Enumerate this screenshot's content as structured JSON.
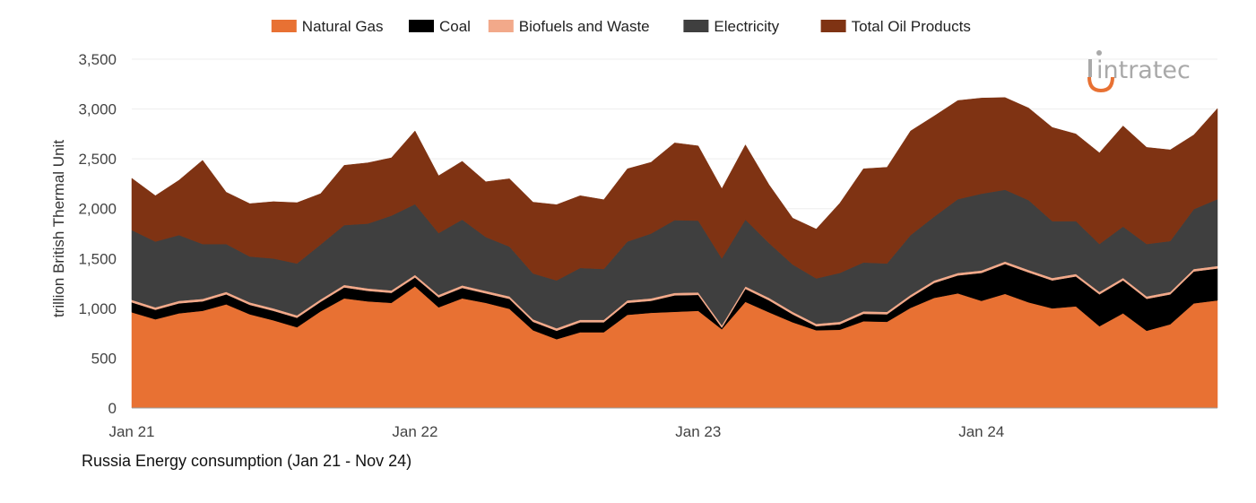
{
  "chart_data": {
    "type": "area",
    "stacked": true,
    "caption": "Russia Energy consumption (Jan 21 - Nov 24)",
    "ylabel": "trillion British Thermal Unit",
    "xlabel": "",
    "ylim": [
      0,
      3500
    ],
    "yticks": [
      0,
      500,
      1000,
      1500,
      2000,
      2500,
      3000,
      3500
    ],
    "ytick_labels": [
      "0",
      "500",
      "1,000",
      "1,500",
      "2,000",
      "2,500",
      "3,000",
      "3,500"
    ],
    "xtick_labels": [
      "Jan 21",
      "Jan 22",
      "Jan 23",
      "Jan 24"
    ],
    "xtick_indices": [
      0,
      12,
      24,
      36
    ],
    "legend_position": "top-center",
    "x": [
      "Jan 21",
      "Feb 21",
      "Mar 21",
      "Apr 21",
      "May 21",
      "Jun 21",
      "Jul 21",
      "Aug 21",
      "Sep 21",
      "Oct 21",
      "Nov 21",
      "Dec 21",
      "Jan 22",
      "Feb 22",
      "Mar 22",
      "Apr 22",
      "May 22",
      "Jun 22",
      "Jul 22",
      "Aug 22",
      "Sep 22",
      "Oct 22",
      "Nov 22",
      "Dec 22",
      "Jan 23",
      "Feb 23",
      "Mar 23",
      "Apr 23",
      "May 23",
      "Jun 23",
      "Jul 23",
      "Aug 23",
      "Sep 23",
      "Oct 23",
      "Nov 23",
      "Dec 23",
      "Jan 24",
      "Feb 24",
      "Mar 24",
      "Apr 24",
      "May 24",
      "Jun 24",
      "Jul 24",
      "Aug 24",
      "Sep 24",
      "Oct 24",
      "Nov 24"
    ],
    "series": [
      {
        "name": "Natural Gas",
        "color": "#e87133",
        "values": [
          960,
          890,
          950,
          975,
          1040,
          940,
          880,
          810,
          970,
          1100,
          1070,
          1055,
          1220,
          1010,
          1100,
          1055,
          995,
          780,
          690,
          760,
          760,
          935,
          955,
          965,
          975,
          790,
          1065,
          960,
          860,
          780,
          785,
          870,
          865,
          1005,
          1105,
          1150,
          1075,
          1145,
          1060,
          1000,
          1020,
          820,
          950,
          775,
          840,
          1050,
          1080
        ]
      },
      {
        "name": "Coal",
        "color": "#000000",
        "values": [
          100,
          95,
          100,
          95,
          100,
          95,
          95,
          95,
          95,
          110,
          105,
          100,
          90,
          100,
          105,
          95,
          100,
          85,
          85,
          100,
          100,
          120,
          120,
          165,
          160,
          15,
          130,
          120,
          80,
          40,
          55,
          75,
          75,
          105,
          150,
          180,
          280,
          300,
          300,
          280,
          300,
          320,
          330,
          320,
          300,
          320,
          320
        ]
      },
      {
        "name": "Biofuels and Waste",
        "color": "#f2a98a",
        "values": [
          25,
          25,
          25,
          25,
          25,
          25,
          25,
          25,
          25,
          25,
          25,
          25,
          25,
          25,
          25,
          25,
          25,
          25,
          25,
          25,
          25,
          25,
          25,
          25,
          25,
          25,
          25,
          25,
          25,
          25,
          25,
          25,
          25,
          25,
          25,
          25,
          25,
          25,
          25,
          25,
          25,
          25,
          25,
          25,
          25,
          25,
          25
        ]
      },
      {
        "name": "Electricity",
        "color": "#3f3f3f",
        "values": [
          700,
          660,
          660,
          550,
          480,
          460,
          500,
          520,
          550,
          600,
          650,
          750,
          710,
          620,
          660,
          540,
          500,
          460,
          480,
          520,
          510,
          590,
          650,
          730,
          720,
          670,
          670,
          550,
          475,
          455,
          490,
          490,
          485,
          600,
          640,
          740,
          770,
          720,
          700,
          570,
          530,
          480,
          515,
          525,
          510,
          600,
          670
        ]
      },
      {
        "name": "Total Oil Products",
        "color": "#7f3313",
        "values": [
          520,
          460,
          550,
          840,
          520,
          530,
          570,
          610,
          510,
          600,
          610,
          580,
          735,
          575,
          585,
          555,
          680,
          715,
          760,
          725,
          695,
          730,
          715,
          775,
          750,
          700,
          750,
          585,
          465,
          495,
          700,
          940,
          965,
          1045,
          1010,
          990,
          960,
          925,
          925,
          940,
          875,
          915,
          1010,
          970,
          915,
          745,
          910
        ]
      }
    ],
    "watermark": "intratec"
  }
}
